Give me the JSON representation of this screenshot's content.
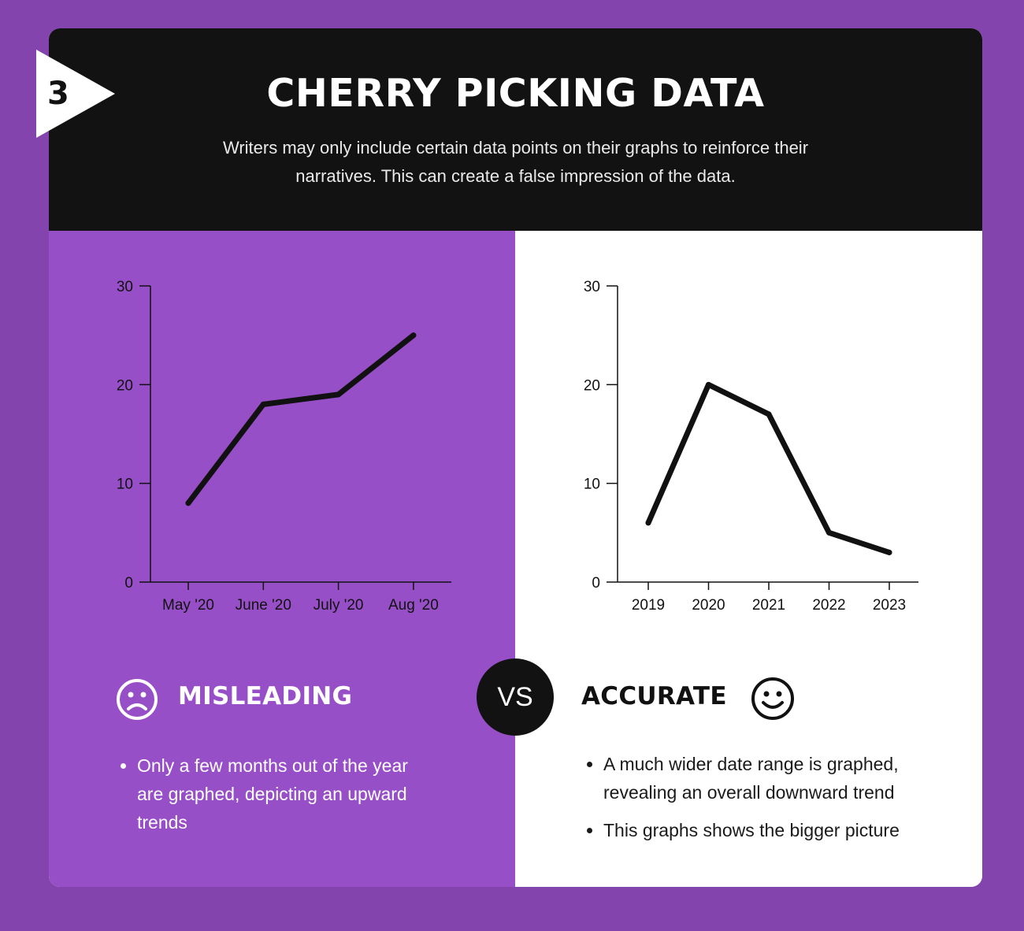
{
  "header": {
    "step_number": "3",
    "title": "CHERRY PICKING DATA",
    "subtitle": "Writers may only include certain data points on their graphs to reinforce their narratives. This can create a false impression of the data."
  },
  "colors": {
    "page_background": "#8444ad",
    "misleading_panel": "#974fc8",
    "header_background": "#121212"
  },
  "chart_data": [
    {
      "type": "line",
      "categories": [
        "May '20",
        "June '20",
        "July '20",
        "Aug '20"
      ],
      "values": [
        8,
        18,
        19,
        25
      ],
      "ylim": [
        0,
        30
      ],
      "yticks": [
        0,
        10,
        20,
        30
      ],
      "grid": false
    },
    {
      "type": "line",
      "categories": [
        "2019",
        "2020",
        "2021",
        "2022",
        "2023"
      ],
      "values": [
        6,
        20,
        17,
        5,
        3
      ],
      "ylim": [
        0,
        30
      ],
      "yticks": [
        0,
        10,
        20,
        30
      ],
      "grid": false
    }
  ],
  "misleading": {
    "icon": "sad-face-icon",
    "heading": "MISLEADING",
    "bullets": [
      "Only a few months out of the year are graphed, depicting an upward trends"
    ]
  },
  "vs_label": "VS",
  "accurate": {
    "icon": "smiley-face-icon",
    "heading": "ACCURATE",
    "bullets": [
      "A much wider date range is graphed, revealing an overall downward trend",
      "This graphs shows the bigger picture"
    ]
  }
}
